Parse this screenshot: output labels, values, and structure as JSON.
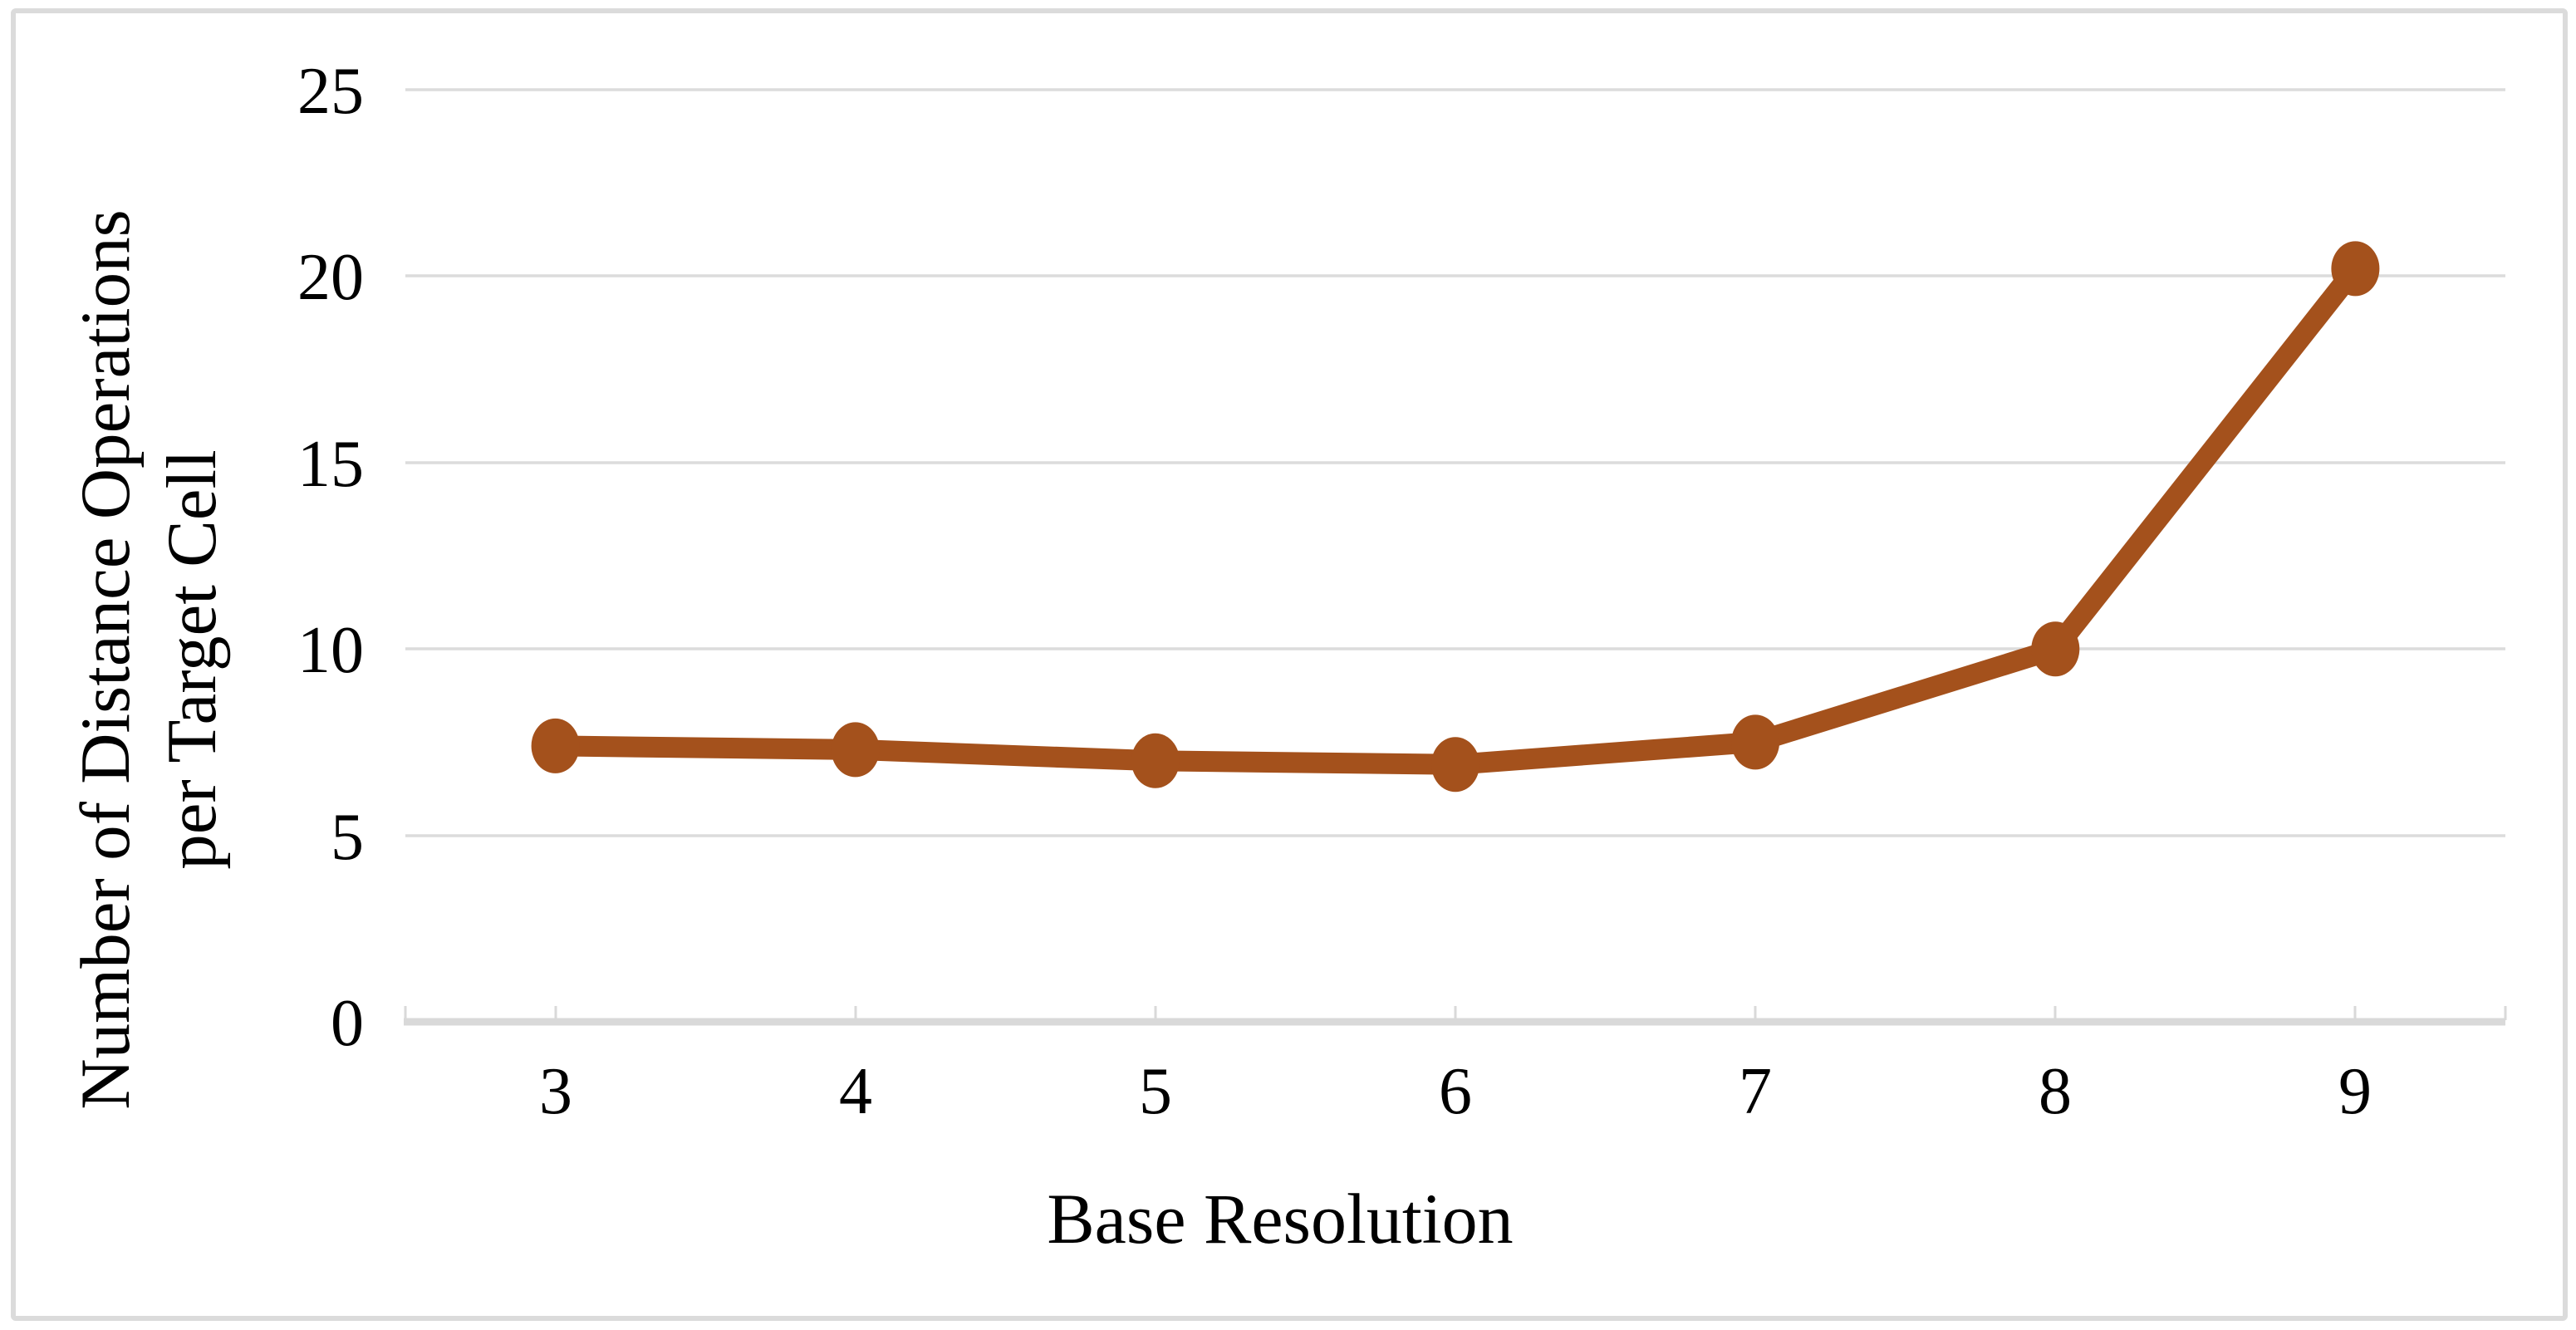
{
  "chart_data": {
    "type": "line",
    "title": "",
    "categories": [
      "3",
      "4",
      "5",
      "6",
      "7",
      "8",
      "9"
    ],
    "series": [
      {
        "name": "Number of Distance Operations per Target Cell",
        "values": [
          7.4,
          7.3,
          7.0,
          6.9,
          7.5,
          10.0,
          20.2
        ],
        "color": "#A4511C",
        "marker": "circle"
      }
    ],
    "xlabel": "Base Resolution",
    "ylabel": "Number of Distance Operations per Target Cell",
    "ylabel_lines": [
      "Number of Distance Operations",
      "per Target Cell"
    ],
    "ylim": [
      0,
      25
    ],
    "ytick_step": 5,
    "yticks_top_to_bottom": [
      "25",
      "20",
      "15",
      "10",
      "5",
      "0"
    ],
    "grid": true,
    "legend_position": "none",
    "colors": {
      "series": "#A4511C",
      "gridline": "#DCDCDC",
      "axis_line": "#D9D9D9",
      "tick": "#D9D9D9",
      "border": "#DBDBDB",
      "text": "#000000",
      "background": "#FFFFFF"
    }
  }
}
